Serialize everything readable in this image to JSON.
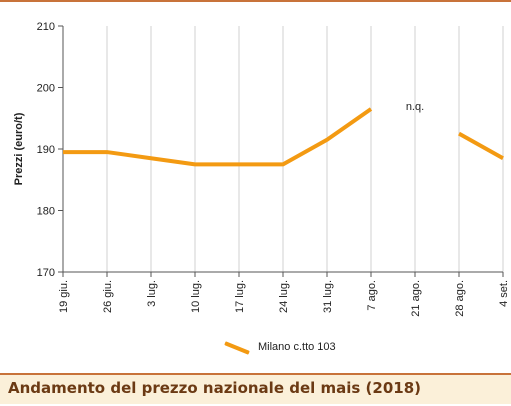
{
  "chart_data": {
    "type": "line",
    "categories": [
      "19 giu.",
      "26 giu.",
      "3 lug.",
      "10 lug.",
      "17 lug.",
      "24 lug.",
      "31 lug.",
      "7 ago.",
      "21 ago.",
      "28 ago.",
      "4 set."
    ],
    "series": [
      {
        "name": "Milano  c.tto 103",
        "color": "#f39a12",
        "values": [
          189.5,
          189.5,
          188.5,
          187.5,
          187.5,
          187.5,
          191.5,
          196.5,
          null,
          192.5,
          188.5
        ]
      }
    ],
    "xlabel": "",
    "ylabel": "Prezzi (euro/t)",
    "ylim": [
      170,
      210
    ],
    "yticks": [
      170,
      180,
      190,
      200,
      210
    ],
    "grid": "vertical",
    "legend_position": "bottom",
    "annotations": [
      {
        "text": "n.q.",
        "category": "21 ago.",
        "y": 197
      }
    ]
  },
  "footer": {
    "title": "Andamento del prezzo nazionale del mais (2018)"
  }
}
